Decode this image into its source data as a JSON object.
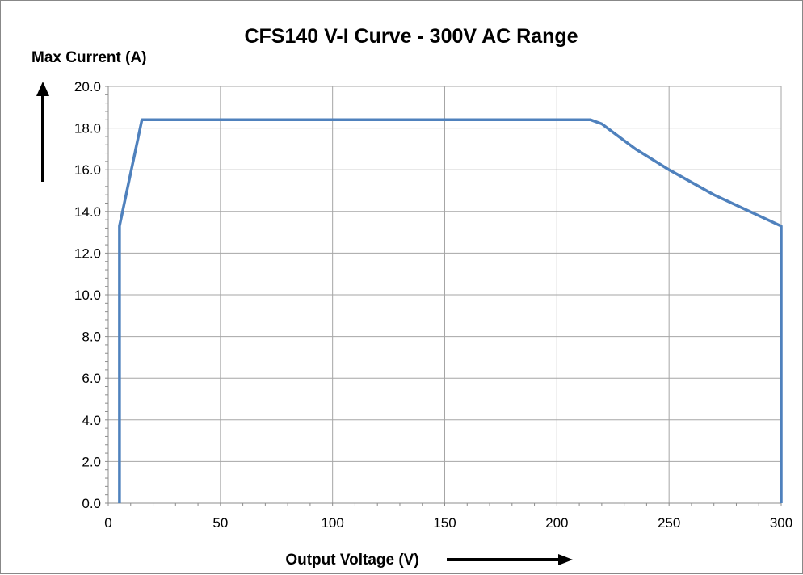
{
  "chart_data": {
    "type": "line",
    "title": "CFS140 V-I Curve - 300V AC Range",
    "ylabel": "Max Current (A)",
    "xlabel": "Output Voltage (V)",
    "xlim": [
      0,
      300
    ],
    "ylim": [
      0,
      20
    ],
    "x_ticks": [
      "0",
      "50",
      "100",
      "150",
      "200",
      "250",
      "300"
    ],
    "y_ticks": [
      "0.0",
      "2.0",
      "4.0",
      "6.0",
      "8.0",
      "10.0",
      "12.0",
      "14.0",
      "16.0",
      "18.0",
      "20.0"
    ],
    "grid": true,
    "legend": "none",
    "series": [
      {
        "color": "#4f81bd",
        "points": [
          [
            5,
            0
          ],
          [
            5,
            13.3
          ],
          [
            15,
            18.4
          ],
          [
            215,
            18.4
          ],
          [
            220,
            18.2
          ],
          [
            235,
            17.0
          ],
          [
            250,
            16.0
          ],
          [
            270,
            14.8
          ],
          [
            300,
            13.3
          ],
          [
            300,
            0
          ]
        ]
      }
    ]
  }
}
